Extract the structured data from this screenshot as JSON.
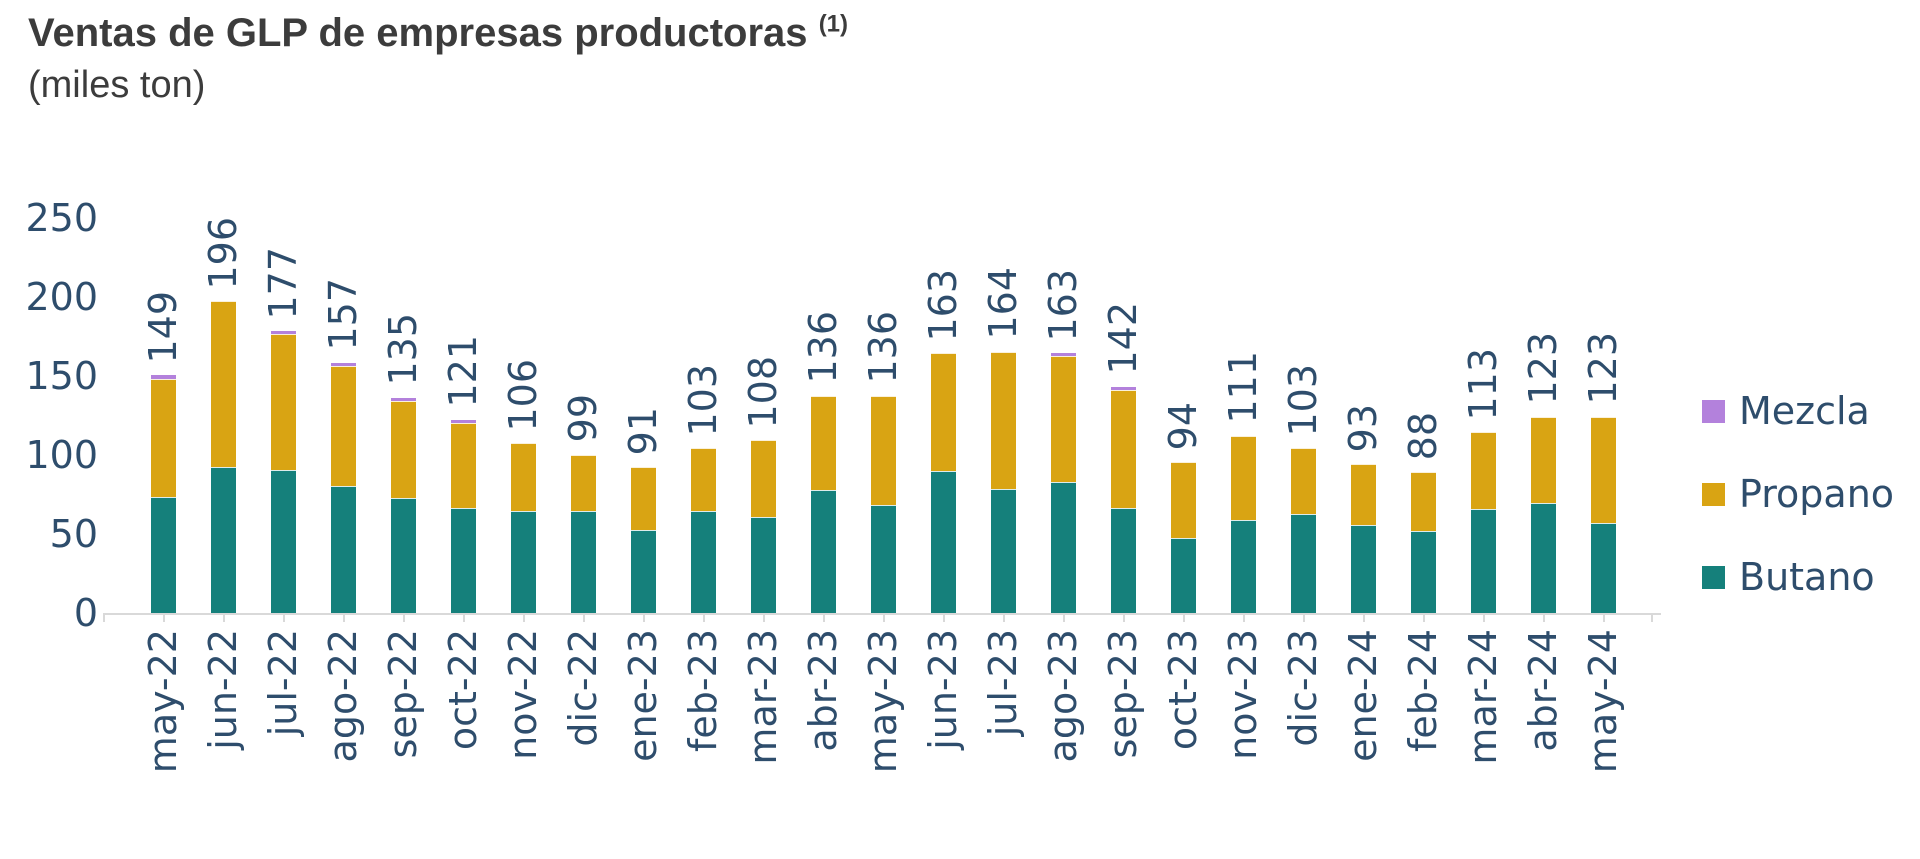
{
  "header": {
    "title": "Ventas de GLP de empresas productoras",
    "title_superscript": "(1)",
    "subtitle": "(miles ton)"
  },
  "legend": {
    "position": "right",
    "items": [
      {
        "label": "Mezcla",
        "color": "#b381dc"
      },
      {
        "label": "Propano",
        "color": "#d9a413"
      },
      {
        "label": "Butano",
        "color": "#15807b"
      }
    ]
  },
  "chart_data": {
    "type": "bar",
    "stacked": true,
    "title": "Ventas de GLP de empresas productoras (1)",
    "subtitle": "(miles ton)",
    "ylabel": "miles ton",
    "ylim": [
      0,
      250
    ],
    "yticks": [
      0,
      50,
      100,
      150,
      200,
      250
    ],
    "grid": false,
    "legend_position": "right",
    "categories": [
      "may-22",
      "jun-22",
      "jul-22",
      "ago-22",
      "sep-22",
      "oct-22",
      "nov-22",
      "dic-22",
      "ene-23",
      "feb-23",
      "mar-23",
      "abr-23",
      "may-23",
      "jun-23",
      "jul-23",
      "ago-23",
      "sep-23",
      "oct-23",
      "nov-23",
      "dic-23",
      "ene-24",
      "feb-24",
      "mar-24",
      "abr-24",
      "may-24"
    ],
    "series": [
      {
        "name": "Butano",
        "color": "#15807b",
        "values": [
          73,
          92,
          90,
          80,
          72,
          66,
          64,
          64,
          52,
          64,
          60,
          77,
          68,
          89,
          78,
          82,
          66,
          47,
          58,
          62,
          55,
          51,
          65,
          69,
          56
        ]
      },
      {
        "name": "Propano",
        "color": "#d9a413",
        "values": [
          74,
          104,
          85,
          75,
          61,
          53,
          42,
          35,
          39,
          39,
          48,
          59,
          68,
          74,
          86,
          79,
          74,
          47,
          53,
          41,
          38,
          37,
          48,
          54,
          67
        ]
      },
      {
        "name": "Mezcla",
        "color": "#b381dc",
        "values": [
          2,
          0,
          2,
          2,
          2,
          2,
          0,
          0,
          0,
          0,
          0,
          0,
          0,
          0,
          0,
          2,
          2,
          0,
          0,
          0,
          0,
          0,
          0,
          0,
          0
        ]
      }
    ],
    "totals": [
      149,
      196,
      177,
      157,
      135,
      121,
      106,
      99,
      91,
      103,
      108,
      136,
      136,
      163,
      164,
      163,
      142,
      94,
      111,
      103,
      93,
      88,
      113,
      123,
      123
    ]
  }
}
